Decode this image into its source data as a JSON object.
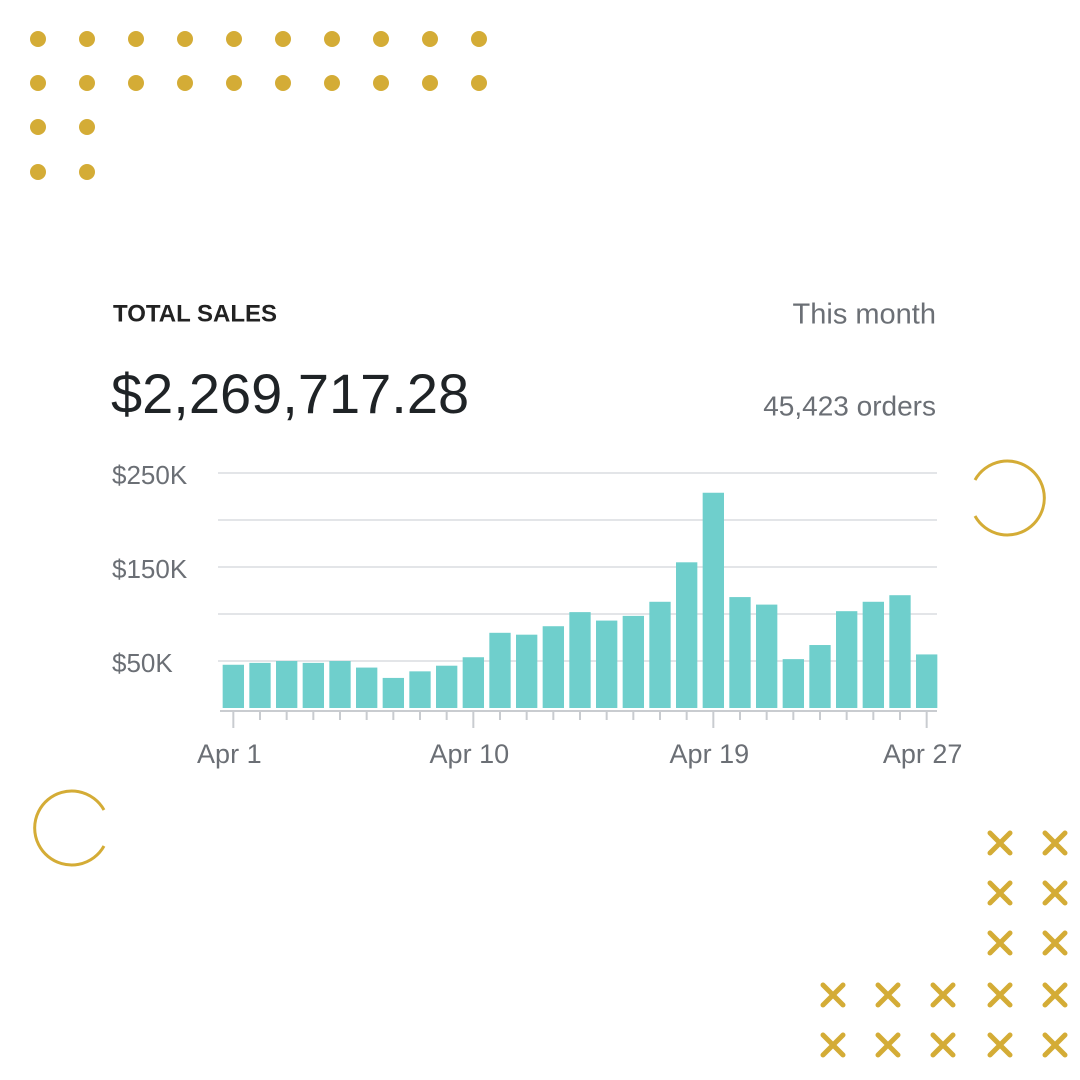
{
  "chart_data": {
    "type": "bar",
    "title": "TOTAL SALES",
    "period": "This month",
    "total": "$2,269,717.28",
    "orders": "45,423 orders",
    "categories": [
      "Apr 1",
      null,
      null,
      null,
      null,
      null,
      null,
      null,
      null,
      "Apr 10",
      null,
      null,
      null,
      null,
      null,
      null,
      null,
      null,
      "Apr 19",
      null,
      null,
      null,
      null,
      null,
      null,
      null,
      "Apr 27"
    ],
    "values": [
      46000,
      48000,
      50000,
      48000,
      50000,
      43000,
      32000,
      39000,
      45000,
      54000,
      80000,
      78000,
      87000,
      102000,
      93000,
      98000,
      113000,
      155000,
      229000,
      118000,
      110000,
      52000,
      67000,
      103000,
      113000,
      120000,
      57000
    ],
    "color": "#6fcfcc",
    "ylim": [
      0,
      250000
    ],
    "yticks": [
      {
        "value": 50000,
        "label": "$50K"
      },
      {
        "value": 100000,
        "label": null
      },
      {
        "value": 150000,
        "label": "$150K"
      },
      {
        "value": 200000,
        "label": null
      },
      {
        "value": 250000,
        "label": "$250K"
      }
    ],
    "grid": true
  }
}
